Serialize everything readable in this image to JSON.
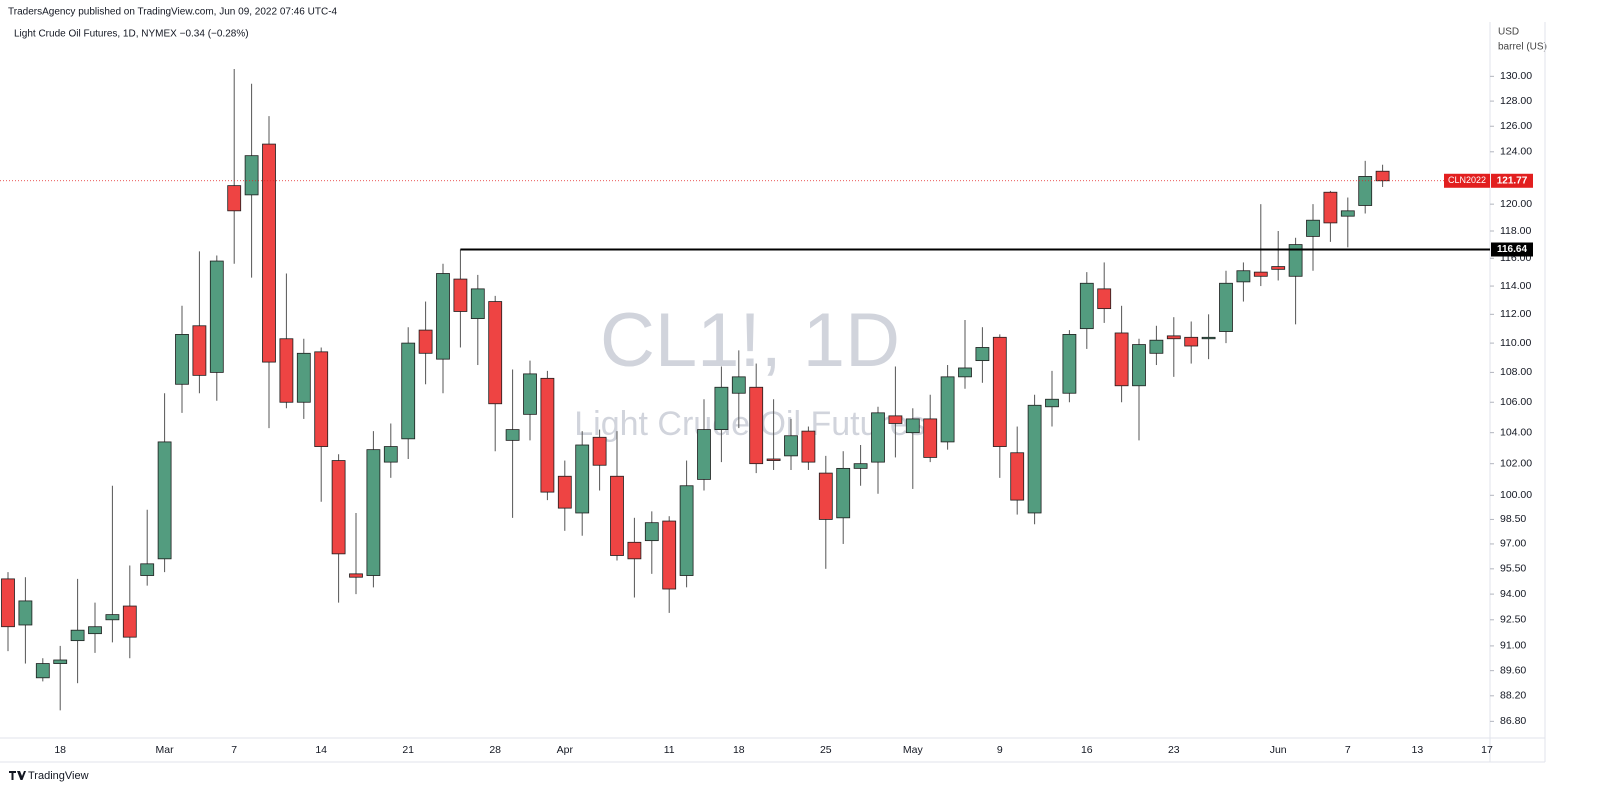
{
  "header": {
    "published": "TradersAgency published on TradingView.com, Jun 09, 2022 07:46 UTC-4"
  },
  "chart_data": {
    "type": "candlestick",
    "title": "Light Crude Oil Futures, 1D, NYMEX −0.34 (−0.28%)",
    "watermark": "CL1!, 1D",
    "watermark_subtitle": "Light Crude Oil Futures",
    "currency": "USD",
    "unit": "barrel (US)",
    "up_color": "#539c7f",
    "down_color": "#ee4443",
    "log_scale": true,
    "grid": false,
    "categories": [
      null,
      null,
      null,
      "18",
      null,
      null,
      null,
      null,
      null,
      "Mar",
      null,
      null,
      null,
      "7",
      null,
      null,
      null,
      null,
      "14",
      null,
      null,
      null,
      null,
      "21",
      null,
      null,
      null,
      null,
      "28",
      null,
      null,
      null,
      "Apr",
      null,
      null,
      null,
      null,
      null,
      "11",
      null,
      null,
      null,
      "18",
      null,
      null,
      null,
      null,
      "25",
      null,
      null,
      null,
      null,
      "May",
      null,
      null,
      null,
      null,
      "9",
      null,
      null,
      null,
      null,
      "16",
      null,
      null,
      null,
      null,
      "23",
      null,
      null,
      null,
      null,
      null,
      "Jun",
      null,
      null,
      null,
      "7",
      null,
      null,
      null,
      "13",
      null,
      null,
      null,
      "17"
    ],
    "open": [
      94.9,
      92.2,
      89.2,
      90.0,
      91.3,
      91.7,
      92.5,
      93.3,
      95.1,
      96.1,
      107.2,
      111.2,
      108.0,
      121.4,
      120.7,
      124.6,
      110.3,
      106.0,
      109.4,
      102.2,
      95.2,
      95.1,
      102.1,
      103.6,
      110.9,
      108.9,
      114.5,
      111.7,
      112.9,
      103.5,
      105.2,
      107.6,
      101.2,
      98.9,
      103.7,
      101.2,
      97.1,
      97.2,
      98.4,
      95.1,
      101.0,
      104.2,
      106.6,
      107.0,
      102.3,
      102.5,
      104.1,
      101.4,
      98.6,
      101.7,
      102.1,
      105.1,
      104.0,
      104.9,
      103.4,
      107.7,
      108.8,
      110.4,
      102.7,
      98.9,
      105.7,
      106.6,
      111.0,
      113.8,
      110.7,
      107.1,
      109.3,
      110.5,
      110.4,
      110.3,
      110.8,
      114.3,
      115.0,
      115.4,
      114.7,
      117.6,
      120.9,
      119.1,
      119.9,
      122.5,
      null,
      null,
      null,
      null,
      null,
      null
    ],
    "high": [
      95.3,
      95.0,
      90.3,
      91.0,
      94.9,
      93.5,
      100.6,
      95.7,
      99.1,
      106.6,
      112.6,
      116.5,
      116.2,
      130.6,
      129.4,
      126.8,
      114.9,
      110.3,
      109.7,
      102.6,
      98.9,
      104.1,
      104.6,
      111.1,
      112.9,
      115.6,
      116.64,
      114.8,
      113.3,
      108.2,
      108.8,
      108.1,
      102.2,
      104.1,
      104.2,
      104.1,
      98.6,
      99.0,
      98.7,
      102.2,
      106.2,
      108.4,
      109.5,
      108.6,
      106.2,
      104.9,
      104.4,
      102.5,
      102.8,
      103.2,
      105.7,
      108.4,
      105.6,
      106.5,
      108.5,
      111.6,
      111.1,
      110.6,
      104.4,
      106.5,
      108.1,
      110.9,
      115.0,
      115.7,
      112.6,
      110.3,
      111.2,
      111.8,
      111.5,
      112.0,
      115.1,
      115.7,
      120.0,
      118.0,
      117.5,
      120.0,
      121.0,
      120.5,
      123.3,
      123.0,
      null,
      null,
      null,
      null,
      null,
      null
    ],
    "low": [
      90.7,
      90.0,
      89.0,
      87.4,
      88.9,
      90.6,
      91.2,
      90.3,
      94.5,
      95.3,
      105.3,
      106.6,
      106.1,
      115.6,
      114.6,
      104.3,
      105.6,
      104.9,
      99.6,
      93.5,
      94.0,
      94.4,
      101.1,
      102.3,
      107.2,
      106.6,
      109.7,
      108.5,
      102.8,
      98.6,
      103.5,
      99.7,
      97.8,
      97.5,
      100.3,
      96.0,
      93.8,
      95.2,
      92.9,
      94.4,
      100.3,
      102.1,
      104.3,
      101.4,
      101.6,
      101.6,
      101.6,
      95.5,
      97.0,
      100.6,
      100.1,
      102.4,
      100.4,
      102.1,
      102.9,
      106.9,
      107.3,
      101.1,
      98.8,
      98.2,
      104.4,
      106.0,
      109.6,
      111.4,
      106.0,
      103.5,
      108.5,
      107.7,
      108.6,
      108.9,
      110.0,
      112.9,
      114.0,
      114.4,
      111.3,
      115.1,
      117.2,
      116.8,
      119.3,
      121.3,
      null,
      null,
      null,
      null,
      null,
      null
    ],
    "close": [
      92.1,
      93.6,
      90.0,
      90.2,
      91.9,
      92.1,
      92.8,
      91.5,
      95.8,
      103.4,
      110.6,
      107.8,
      115.8,
      119.5,
      123.7,
      108.7,
      106.0,
      109.3,
      103.1,
      96.4,
      95.0,
      102.9,
      103.1,
      110.0,
      109.3,
      114.9,
      112.2,
      113.8,
      105.9,
      104.2,
      107.9,
      100.2,
      99.2,
      103.2,
      101.9,
      96.3,
      96.1,
      98.3,
      94.3,
      100.6,
      104.2,
      107.0,
      107.7,
      102.0,
      102.2,
      103.8,
      102.1,
      98.5,
      101.7,
      102.0,
      105.3,
      104.6,
      104.9,
      102.4,
      107.7,
      108.3,
      109.7,
      103.1,
      99.7,
      105.8,
      106.2,
      110.6,
      114.2,
      112.4,
      107.1,
      109.9,
      110.2,
      110.3,
      109.8,
      110.4,
      114.2,
      115.1,
      114.7,
      115.2,
      117.0,
      118.8,
      118.6,
      119.5,
      122.1,
      121.77,
      null,
      null,
      null,
      null,
      null,
      null
    ],
    "ylim": [
      85.9,
      134.5
    ],
    "yticks": [
      {
        "value": 130,
        "label": "130.00"
      },
      {
        "value": 128,
        "label": "128.00"
      },
      {
        "value": 126,
        "label": "126.00"
      },
      {
        "value": 124,
        "label": "124.00"
      },
      {
        "value": 120,
        "label": "120.00"
      },
      {
        "value": 118,
        "label": "118.00"
      },
      {
        "value": 116,
        "label": "116.00"
      },
      {
        "value": 114,
        "label": "114.00"
      },
      {
        "value": 112,
        "label": "112.00"
      },
      {
        "value": 110,
        "label": "110.00"
      },
      {
        "value": 108,
        "label": "108.00"
      },
      {
        "value": 106,
        "label": "106.00"
      },
      {
        "value": 104,
        "label": "104.00"
      },
      {
        "value": 102,
        "label": "102.00"
      },
      {
        "value": 100,
        "label": "100.00"
      },
      {
        "value": 98.5,
        "label": "98.50"
      },
      {
        "value": 97,
        "label": "97.00"
      },
      {
        "value": 95.5,
        "label": "95.50"
      },
      {
        "value": 94,
        "label": "94.00"
      },
      {
        "value": 92.5,
        "label": "92.50"
      },
      {
        "value": 91,
        "label": "91.00"
      },
      {
        "value": 89.6,
        "label": "89.60"
      },
      {
        "value": 88.2,
        "label": "88.20"
      },
      {
        "value": 86.8,
        "label": "86.80"
      }
    ],
    "hline": {
      "value": 116.64,
      "color": "#000000"
    },
    "last_price": {
      "symbol": "CLN2022",
      "value": 121.77,
      "color": "#e21f1f"
    }
  },
  "footer": {
    "brand": "TradingView"
  }
}
